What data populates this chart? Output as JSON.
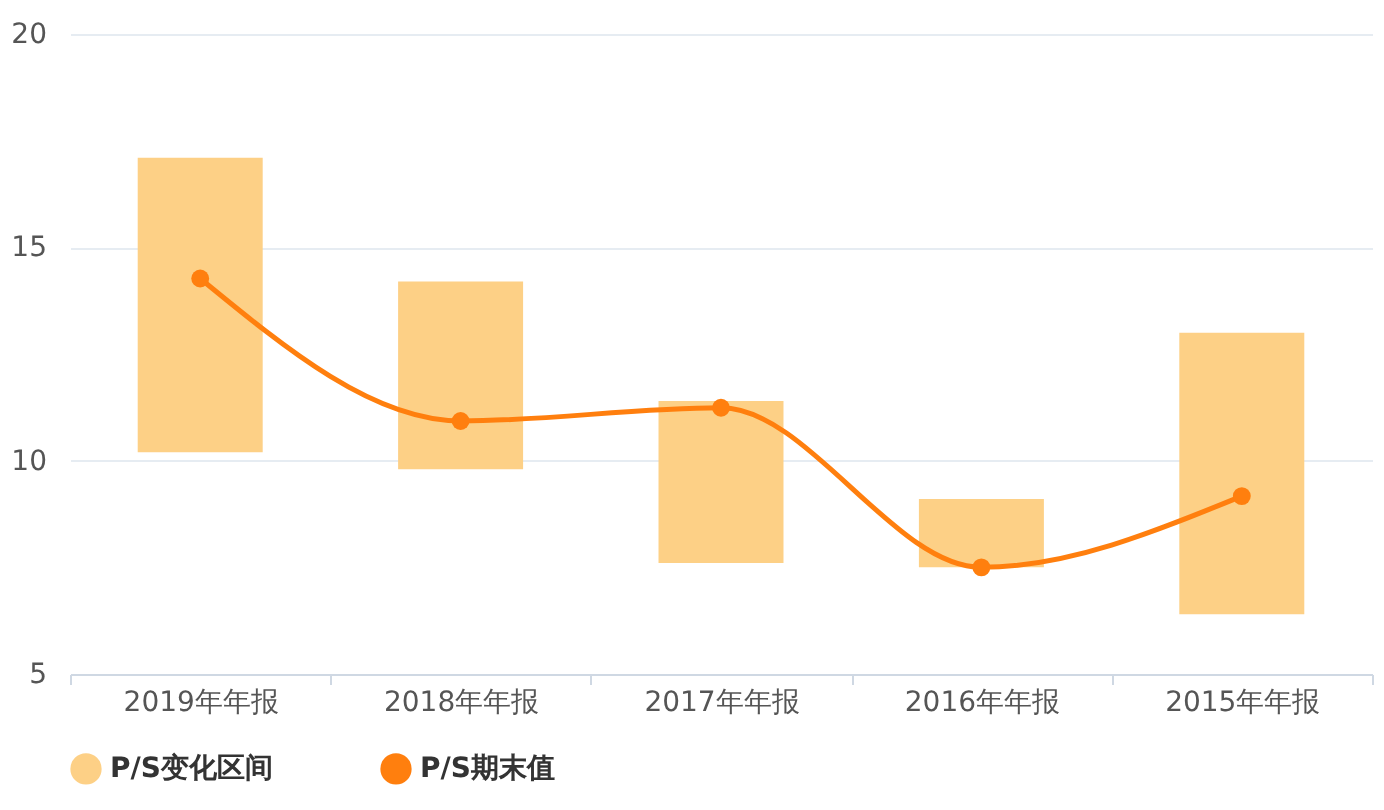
{
  "chart_data": {
    "type": "bar",
    "categories": [
      "2019年年报",
      "2018年年报",
      "2017年年报",
      "2016年年报",
      "2015年年报"
    ],
    "series": [
      {
        "name": "P/S变化区间",
        "color": "#fdd086",
        "base": [
          10.2,
          9.8,
          7.6,
          7.5,
          6.4
        ],
        "values": [
          6.9,
          4.4,
          3.8,
          1.6,
          6.6
        ]
      },
      {
        "name": "P/S期末值",
        "type": "line",
        "color": "#ff7f0e",
        "marker": "circle",
        "values": [
          14.27,
          10.93,
          11.24,
          7.5,
          9.17
        ]
      }
    ],
    "ylim": [
      5,
      20
    ],
    "yticks": [
      5,
      10,
      15,
      20
    ],
    "grid": "y",
    "legend": "bottom"
  }
}
